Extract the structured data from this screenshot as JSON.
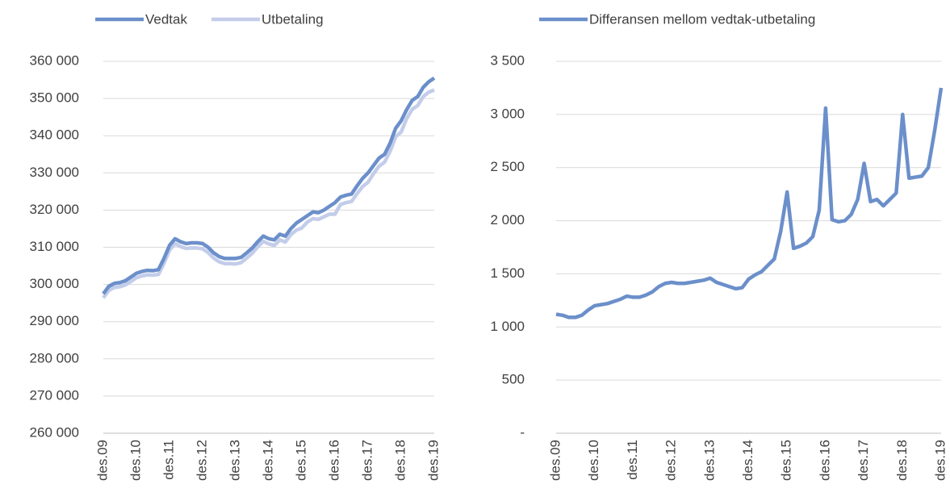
{
  "chart_data": [
    {
      "type": "line",
      "categories": [
        "des.09",
        null,
        null,
        null,
        null,
        null,
        "des.10",
        null,
        null,
        null,
        null,
        null,
        "des.11",
        null,
        null,
        null,
        null,
        null,
        "des.12",
        null,
        null,
        null,
        null,
        null,
        "des.13",
        null,
        null,
        null,
        null,
        null,
        "des.14",
        null,
        null,
        null,
        null,
        null,
        "des.15",
        null,
        null,
        null,
        null,
        null,
        "des.16",
        null,
        null,
        null,
        null,
        null,
        "des.17",
        null,
        null,
        null,
        null,
        null,
        "des.18",
        null,
        null,
        null,
        null,
        null,
        "des.19"
      ],
      "series": [
        {
          "name": "Vedtak",
          "color": "#6b8fca",
          "values": [
            297500,
            299500,
            300300,
            300500,
            301000,
            302000,
            303000,
            303500,
            303800,
            303700,
            304000,
            307000,
            310500,
            312300,
            311500,
            311000,
            311200,
            311200,
            311000,
            310000,
            308500,
            307500,
            307000,
            307000,
            307000,
            307300,
            308500,
            309800,
            311500,
            313000,
            312300,
            312000,
            313500,
            313000,
            315000,
            316500,
            317500,
            318500,
            319500,
            319300,
            320000,
            321000,
            322000,
            323500,
            324000,
            324300,
            326500,
            328500,
            330000,
            332000,
            334000,
            335000,
            338000,
            342000,
            344000,
            347000,
            349500,
            350500,
            353000,
            354500,
            355500
          ]
        },
        {
          "name": "Utbetaling",
          "color": "#c3cdea",
          "values": [
            296400,
            298400,
            299200,
            299400,
            299900,
            300800,
            301800,
            302300,
            302600,
            302500,
            302700,
            305700,
            309200,
            311000,
            310200,
            309700,
            309800,
            309800,
            309600,
            308600,
            307100,
            306100,
            305600,
            305600,
            305500,
            305900,
            307100,
            308400,
            310100,
            311600,
            310900,
            310500,
            312000,
            311400,
            313400,
            314600,
            315200,
            316800,
            317700,
            317500,
            318200,
            318900,
            318900,
            321500,
            322000,
            322300,
            324400,
            326300,
            327500,
            329800,
            331800,
            332900,
            335800,
            339700,
            341000,
            344600,
            347100,
            348100,
            350500,
            351700,
            352300
          ]
        }
      ],
      "ylim": [
        260000,
        360000
      ],
      "yticks": [
        {
          "value": 260000,
          "label": "260 000"
        },
        {
          "value": 270000,
          "label": "270 000"
        },
        {
          "value": 280000,
          "label": "280 000"
        },
        {
          "value": 290000,
          "label": "290 000"
        },
        {
          "value": 300000,
          "label": "300 000"
        },
        {
          "value": 310000,
          "label": "310 000"
        },
        {
          "value": 320000,
          "label": "320 000"
        },
        {
          "value": 330000,
          "label": "330 000"
        },
        {
          "value": 340000,
          "label": "340 000"
        },
        {
          "value": 350000,
          "label": "350 000"
        },
        {
          "value": 360000,
          "label": "360 000"
        }
      ],
      "grid": true
    },
    {
      "type": "line",
      "categories": [
        "des.09",
        null,
        null,
        null,
        null,
        null,
        "des.10",
        null,
        null,
        null,
        null,
        null,
        "des.11",
        null,
        null,
        null,
        null,
        null,
        "des.12",
        null,
        null,
        null,
        null,
        null,
        "des.13",
        null,
        null,
        null,
        null,
        null,
        "des.14",
        null,
        null,
        null,
        null,
        null,
        "des.15",
        null,
        null,
        null,
        null,
        null,
        "des.16",
        null,
        null,
        null,
        null,
        null,
        "des.17",
        null,
        null,
        null,
        null,
        null,
        "des.18",
        null,
        null,
        null,
        null,
        null,
        "des.19"
      ],
      "series": [
        {
          "name": "Differansen mellom vedtak-utbetaling",
          "color": "#6b8fca",
          "values": [
            1120,
            1110,
            1090,
            1090,
            1110,
            1160,
            1200,
            1210,
            1220,
            1240,
            1260,
            1290,
            1280,
            1280,
            1300,
            1330,
            1380,
            1410,
            1420,
            1410,
            1410,
            1420,
            1430,
            1440,
            1460,
            1420,
            1400,
            1380,
            1360,
            1370,
            1450,
            1490,
            1520,
            1580,
            1640,
            1900,
            2270,
            1740,
            1760,
            1790,
            1850,
            2100,
            3060,
            2010,
            1990,
            2000,
            2060,
            2200,
            2540,
            2180,
            2200,
            2140,
            2200,
            2260,
            3000,
            2400,
            2410,
            2420,
            2500,
            2850,
            3250
          ]
        }
      ],
      "ylim": [
        0,
        3500
      ],
      "yticks": [
        {
          "value": 0,
          "label": "-"
        },
        {
          "value": 500,
          "label": "500"
        },
        {
          "value": 1000,
          "label": "1 000"
        },
        {
          "value": 1500,
          "label": "1 500"
        },
        {
          "value": 2000,
          "label": "2 000"
        },
        {
          "value": 2500,
          "label": "2 500"
        },
        {
          "value": 3000,
          "label": "3 000"
        },
        {
          "value": 3500,
          "label": "3 500"
        }
      ],
      "grid": true
    }
  ]
}
